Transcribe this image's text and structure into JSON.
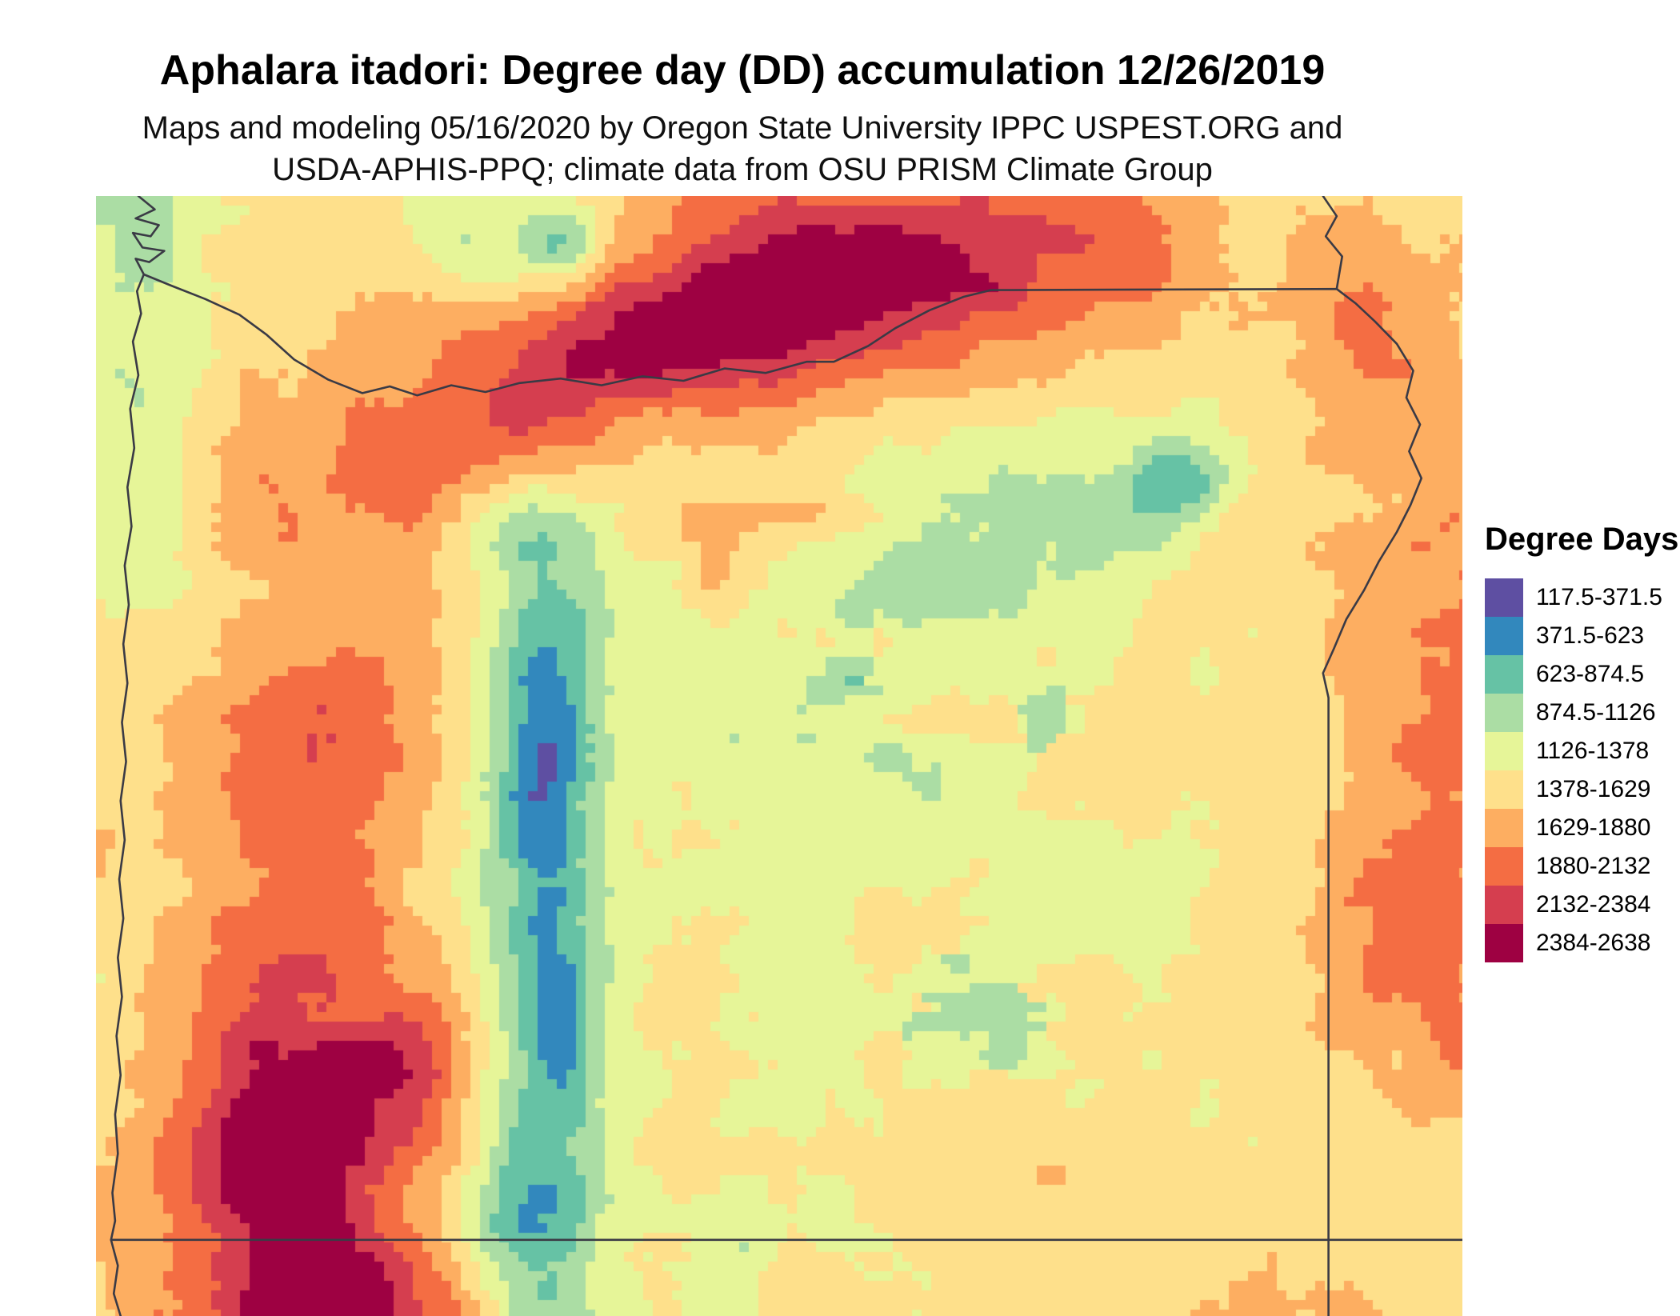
{
  "title": "Aphalara itadori: Degree day (DD) accumulation 12/26/2019",
  "subtitle": {
    "line1": "Maps and modeling 05/16/2020 by Oregon State University IPPC USPEST.ORG and",
    "line2": "USDA-APHIS-PPQ; climate data from OSU PRISM Climate Group"
  },
  "legend": {
    "title": "Degree Days",
    "entries": [
      {
        "label": "117.5-371.5",
        "color": "#5e4fa2"
      },
      {
        "label": "371.5-623",
        "color": "#3288bd"
      },
      {
        "label": "623-874.5",
        "color": "#66c2a5"
      },
      {
        "label": "874.5-1126",
        "color": "#abdda4"
      },
      {
        "label": "1126-1378",
        "color": "#e6f598"
      },
      {
        "label": "1378-1629",
        "color": "#fee08b"
      },
      {
        "label": "1629-1880",
        "color": "#fdae61"
      },
      {
        "label": "1880-2132",
        "color": "#f46d43"
      },
      {
        "label": "2132-2384",
        "color": "#d53e4f"
      },
      {
        "label": "2384-2638",
        "color": "#9e0142"
      }
    ]
  },
  "colors": {
    "boundary": "#3a3a45",
    "background": "#ffffff"
  },
  "chart_data": {
    "type": "heatmap",
    "title": "Aphalara itadori: Degree day (DD) accumulation 12/26/2019",
    "legend_title": "Degree Days",
    "bin_edges": [
      117.5,
      371.5,
      623,
      874.5,
      1126,
      1378,
      1629,
      1880,
      2132,
      2384,
      2638
    ],
    "bin_colors": [
      "#5e4fa2",
      "#3288bd",
      "#66c2a5",
      "#abdda4",
      "#e6f598",
      "#fee08b",
      "#fdae61",
      "#f46d43",
      "#d53e4f",
      "#9e0142"
    ],
    "legend_position": "right",
    "notes": "Raster degree-day accumulation map with state boundary overlay; low values (blue/purple) in mountain areas, high values (red) in basins, gorge and southwest valleys"
  }
}
